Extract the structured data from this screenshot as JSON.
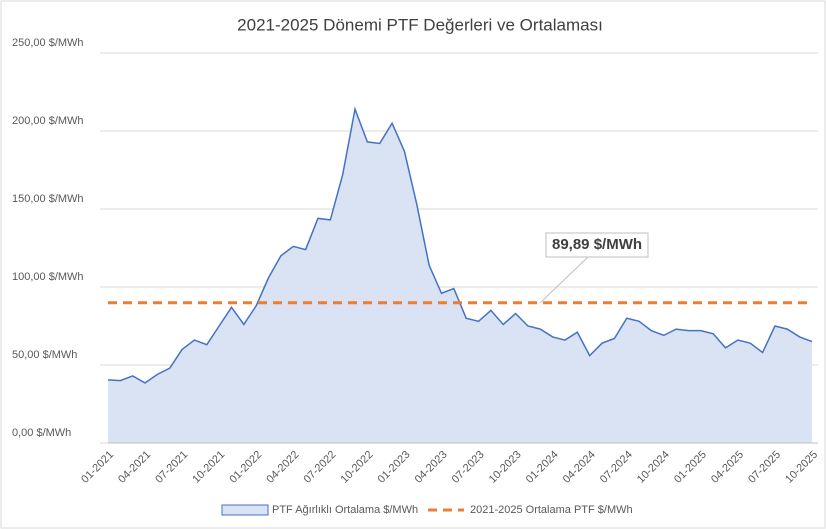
{
  "chart_data": {
    "type": "area",
    "title": "2021-2025 Dönemi PTF Değerleri ve Ortalaması",
    "categories": [
      "01-2021",
      null,
      null,
      "04-2021",
      null,
      null,
      "07-2021",
      null,
      null,
      "10-2021",
      null,
      null,
      "01-2022",
      null,
      null,
      "04-2022",
      null,
      null,
      "07-2022",
      null,
      null,
      "10-2022",
      null,
      null,
      "01-2023",
      null,
      null,
      "04-2023",
      null,
      null,
      "07-2023",
      null,
      null,
      "10-2023",
      null,
      null,
      "01-2024",
      null,
      null,
      "04-2024",
      null,
      null,
      "07-2024",
      null,
      null,
      "10-2024",
      null,
      null,
      "01-2025",
      null,
      null,
      "04-2025",
      null,
      null,
      "07-2025",
      null,
      null,
      "10-2025"
    ],
    "series": [
      {
        "name": "PTF Ağırlıklı Ortalama $/MWh",
        "color": "#4472c4",
        "fill": "#dae3f3",
        "values": [
          40.5,
          40,
          43,
          38.5,
          44,
          48,
          60,
          66,
          63,
          75,
          87,
          76,
          88,
          106,
          120,
          126,
          124,
          144,
          143,
          172,
          214,
          193,
          192,
          205,
          187,
          153,
          114,
          96,
          99,
          80,
          78,
          85,
          76,
          83,
          75,
          73,
          68,
          66,
          71,
          56,
          64,
          67,
          80,
          78,
          72,
          69,
          73,
          72,
          72,
          70,
          61,
          66,
          64,
          58,
          75,
          73,
          68,
          65
        ]
      }
    ],
    "reference_line": {
      "name": "2021-2025 Ortalama PTF $/MWh",
      "color": "#ed7d31",
      "value": 89.89,
      "label": "89,89 $/MWh"
    },
    "ylim": [
      0,
      250
    ],
    "yticks": [
      {
        "value": 0,
        "label": "0,00 $/MWh"
      },
      {
        "value": 50,
        "label": "50,00 $/MWh"
      },
      {
        "value": 100,
        "label": "100,00 $/MWh"
      },
      {
        "value": 150,
        "label": "150,00 $/MWh"
      },
      {
        "value": 200,
        "label": "200,00 $/MWh"
      },
      {
        "value": 250,
        "label": "250,00 $/MWh"
      }
    ],
    "grid": true,
    "legend": "bottom"
  }
}
